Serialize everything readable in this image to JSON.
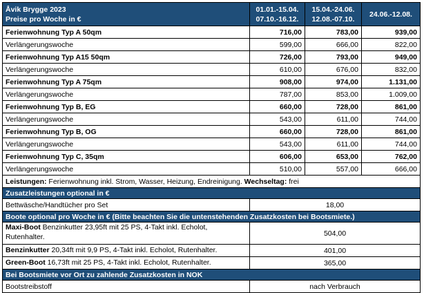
{
  "header": {
    "title": "Åvik Brygge 2023",
    "subtitle": "Preise pro Woche in €",
    "periods": [
      {
        "line1": "01.01.-15.04.",
        "line2": "07.10.-16.12."
      },
      {
        "line1": "15.04.-24.06.",
        "line2": "12.08.-07.10."
      },
      {
        "line1": "24.06.-12.08.",
        "line2": ""
      }
    ]
  },
  "apartments": [
    {
      "name": "Ferienwohnung Typ A 50qm",
      "prices": [
        "716,00",
        "783,00",
        "939,00"
      ],
      "extension_label": "Verlängerungswoche",
      "extension": [
        "599,00",
        "666,00",
        "822,00"
      ]
    },
    {
      "name": "Ferienwohnung Typ A15 50qm",
      "prices": [
        "726,00",
        "793,00",
        "949,00"
      ],
      "extension_label": "Verlängerungswoche",
      "extension": [
        "610,00",
        "676,00",
        "832,00"
      ]
    },
    {
      "name": "Ferienwohnung Typ A 75qm",
      "prices": [
        "908,00",
        "974,00",
        "1.131,00"
      ],
      "extension_label": "Verlängerungswoche",
      "extension": [
        "787,00",
        "853,00",
        "1.009,00"
      ]
    },
    {
      "name": "Ferienwohnung Typ B, EG",
      "prices": [
        "660,00",
        "728,00",
        "861,00"
      ],
      "extension_label": "Verlängerungswoche",
      "extension": [
        "543,00",
        "611,00",
        "744,00"
      ]
    },
    {
      "name": "Ferienwohnung Typ B, OG",
      "prices": [
        "660,00",
        "728,00",
        "861,00"
      ],
      "extension_label": "Verlängerungswoche",
      "extension": [
        "543,00",
        "611,00",
        "744,00"
      ]
    },
    {
      "name": "Ferienwohnung Typ C, 35qm",
      "prices": [
        "606,00",
        "653,00",
        "762,00"
      ],
      "extension_label": "Verlängerungswoche",
      "extension": [
        "510,00",
        "557,00",
        "666,00"
      ]
    }
  ],
  "services": {
    "label": "Leistungen:",
    "text": " Ferienwohnung inkl. Strom, Wasser, Heizung, Endreinigung. ",
    "change_label": "Wechseltag:",
    "change_value": " frei"
  },
  "extras": {
    "heading": "Zusatzleistungen optional in €",
    "items": [
      {
        "label": "Bettwäsche/Handtücher pro Set",
        "value": "18,00"
      }
    ]
  },
  "boats": {
    "heading": "Boote optional pro Woche in € (Bitte beachten Sie die untenstehenden Zusatzkosten bei Bootsmiete.)",
    "items": [
      {
        "name": "Maxi-Boot",
        "desc": " Benzinkutter 23,95ft mit 25 PS, 4-Takt inkl. Echolot, Rutenhalter.",
        "price": "504,00"
      },
      {
        "name": "Benzinkutter",
        "desc": " 20,34ft mit 9,9 PS, 4-Takt inkl. Echolot, Rutenhalter.",
        "price": "401,00"
      },
      {
        "name": "Green-Boot",
        "desc": " 16,73ft mit 25 PS, 4-Takt inkl. Echolot, Rutenhalter.",
        "price": "365,00"
      }
    ]
  },
  "local": {
    "heading": "Bei Bootsmiete vor Ort zu zahlende Zusatzkosten in NOK",
    "items": [
      {
        "label": "Bootstreibstoff",
        "value": "nach Verbrauch"
      }
    ]
  },
  "colors": {
    "header_bg": "#1f4e79",
    "header_text": "#ffffff",
    "border": "#000000"
  }
}
